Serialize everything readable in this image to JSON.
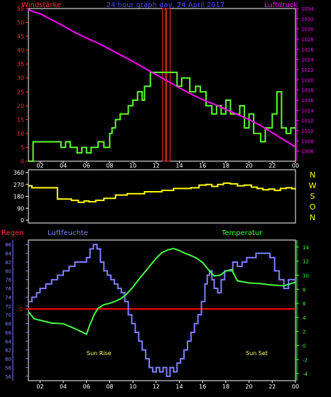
{
  "header": {
    "left_title": "Windstärke",
    "center_title": "24 hour graph day, 24 April 2017",
    "right_title": "Luftdruck"
  },
  "wind_dir_letters": [
    "N",
    "W",
    "S",
    "O",
    "N"
  ],
  "bottom_labels": {
    "rain": "Regen",
    "humidity": "Luftfeuchte",
    "temperature": "Temperatur",
    "sunrise": "Sun Rise",
    "sunset": "Sun Set"
  },
  "colors": {
    "wind": "#5cff2e",
    "gust": "#ff3030",
    "pressure": "#ff00ff",
    "direction": "#ffff00",
    "humidity": "#8080ff",
    "temperature": "#44ff44",
    "rain": "#ff0000",
    "frame": "#ffffff",
    "tick_label": "#ffffff",
    "title_red": "#ff3030",
    "title_blue": "#4a4aff",
    "title_magenta": "#ff00ff",
    "sun_label": "#ffff66"
  },
  "chart_data": [
    {
      "type": "line",
      "x_ticks": [
        "02",
        "04",
        "06",
        "08",
        "10",
        "12",
        "14",
        "16",
        "18",
        "20",
        "22",
        "00"
      ],
      "xlim": [
        1,
        24
      ],
      "y_left_ticks": [
        "55",
        "50",
        "45",
        "40",
        "35",
        "30",
        "25",
        "20",
        "15",
        "10",
        "5",
        "0"
      ],
      "ylim_left": [
        0,
        55
      ],
      "y_right_ticks": [
        "1034",
        "1032",
        "1030",
        "1028",
        "1026",
        "1024",
        "1022",
        "1020",
        "1018",
        "1016",
        "1014",
        "1012",
        "1010",
        "1008",
        "1006"
      ],
      "ylim_right": [
        1004,
        1034
      ],
      "series": [
        {
          "name": "Windstärke",
          "axis": "left",
          "style": "step",
          "x": [
            1.0,
            1.4,
            3.4,
            3.8,
            4.2,
            4.6,
            4.9,
            5.2,
            5.6,
            6.0,
            6.4,
            7.0,
            7.5,
            8.0,
            8.2,
            8.5,
            8.9,
            9.3,
            9.6,
            10.0,
            10.4,
            10.8,
            11.0,
            11.5,
            12.6,
            13.8,
            14.2,
            14.5,
            14.9,
            15.4,
            15.8,
            16.3,
            16.8,
            17.2,
            17.6,
            18.0,
            18.4,
            18.8,
            19.2,
            19.6,
            20.0,
            20.4,
            21.0,
            21.4,
            22.0,
            22.4,
            22.8,
            23.2,
            23.6,
            24.0
          ],
          "y": [
            0,
            7,
            7,
            5,
            7,
            5,
            5,
            3,
            5,
            3,
            5,
            7,
            5,
            10,
            12,
            15,
            17,
            17,
            20,
            22,
            25,
            22,
            27,
            32,
            32,
            27,
            30,
            30,
            25,
            27,
            25,
            20,
            17,
            20,
            17,
            22,
            17,
            17,
            20,
            12,
            17,
            10,
            7,
            12,
            17,
            25,
            12,
            10,
            12,
            12
          ]
        },
        {
          "name": "Böen",
          "axis": "left",
          "style": "bars",
          "bars": [
            {
              "x0": 12.55,
              "x1": 12.8,
              "value": 55
            },
            {
              "x0": 12.9,
              "x1": 13.2,
              "value": 55
            }
          ]
        },
        {
          "name": "Luftdruck",
          "axis": "right",
          "style": "line",
          "x": [
            1.0,
            1.5,
            2.0,
            3.0,
            4.0,
            5.0,
            6.0,
            7.0,
            8.0,
            9.0,
            10.0,
            11.0,
            12.0,
            13.0,
            14.0,
            15.0,
            16.0,
            17.0,
            18.0,
            19.0,
            20.0,
            21.0,
            22.0,
            23.0,
            24.0
          ],
          "y": [
            1033.8,
            1033.3,
            1033.0,
            1031.8,
            1030.6,
            1029.3,
            1028.2,
            1027.2,
            1026.0,
            1024.8,
            1023.6,
            1022.3,
            1021.0,
            1019.7,
            1018.4,
            1017.2,
            1016.1,
            1015.2,
            1014.2,
            1013.2,
            1012.2,
            1011.0,
            1009.6,
            1008.2,
            1006.8
          ]
        }
      ]
    },
    {
      "type": "line",
      "x_ticks": [
        "02",
        "04",
        "06",
        "08",
        "10",
        "12",
        "14",
        "16",
        "18",
        "20",
        "22",
        "00"
      ],
      "xlim": [
        1,
        24
      ],
      "y_ticks": [
        "360",
        "270",
        "180",
        "90",
        "0"
      ],
      "ylim": [
        0,
        360
      ],
      "series": [
        {
          "name": "Windrichtung",
          "style": "step",
          "x": [
            1.0,
            1.3,
            3.3,
            3.5,
            4.7,
            5.3,
            5.8,
            6.2,
            6.8,
            7.5,
            8.5,
            9.5,
            11.0,
            12.5,
            13.5,
            15.0,
            15.7,
            16.3,
            16.8,
            17.3,
            17.8,
            18.4,
            19.0,
            19.6,
            20.2,
            20.7,
            21.2,
            21.7,
            22.2,
            22.7,
            23.2,
            23.7,
            24.0
          ],
          "y": [
            260,
            245,
            245,
            160,
            150,
            135,
            145,
            140,
            150,
            165,
            190,
            200,
            215,
            225,
            240,
            245,
            265,
            270,
            255,
            270,
            280,
            275,
            260,
            265,
            250,
            240,
            230,
            235,
            225,
            240,
            245,
            238,
            240
          ]
        }
      ]
    },
    {
      "type": "line",
      "x_ticks": [
        "02",
        "04",
        "06",
        "08",
        "10",
        "12",
        "14",
        "16",
        "18",
        "20",
        "22",
        "00"
      ],
      "xlim": [
        1,
        24
      ],
      "y_left_ticks": [
        "86",
        "84",
        "82",
        "80",
        "78",
        "76",
        "74",
        "72",
        "70",
        "68",
        "66",
        "64",
        "62",
        "60",
        "58",
        "56"
      ],
      "ylim_left": [
        55,
        87
      ],
      "y_right_ticks": [
        "14",
        "12",
        "10",
        "8",
        "6",
        "4",
        "2",
        "0",
        "-2",
        "-4"
      ],
      "ylim_right": [
        -5,
        15
      ],
      "rain_axis_label": "0",
      "series": [
        {
          "name": "Luftfeuchte",
          "axis": "left",
          "style": "step",
          "x": [
            1.0,
            1.3,
            1.7,
            2.0,
            2.5,
            3.0,
            3.5,
            4.0,
            4.5,
            5.0,
            5.5,
            6.0,
            6.3,
            6.6,
            6.9,
            7.2,
            7.5,
            7.8,
            8.1,
            8.4,
            8.7,
            9.0,
            9.3,
            9.6,
            9.9,
            10.2,
            10.5,
            10.8,
            11.1,
            11.4,
            11.7,
            12.0,
            12.3,
            12.6,
            12.9,
            13.2,
            13.5,
            13.8,
            14.1,
            14.4,
            14.7,
            15.0,
            15.3,
            15.6,
            15.9,
            16.2,
            16.4,
            16.6,
            16.8,
            17.0,
            17.3,
            17.6,
            17.9,
            18.2,
            18.6,
            19.0,
            19.4,
            19.8,
            20.2,
            20.6,
            21.0,
            21.4,
            21.8,
            22.2,
            22.6,
            23.0,
            23.4,
            23.8,
            24.0
          ],
          "y": [
            73,
            74,
            75,
            76,
            77,
            78,
            79,
            80,
            81,
            82,
            82,
            83,
            85,
            86,
            85,
            82,
            80,
            79,
            78,
            77,
            76,
            75,
            73,
            70,
            68,
            66,
            64,
            62,
            60,
            58,
            57,
            58,
            57,
            58,
            56,
            58,
            57,
            59,
            60,
            62,
            64,
            66,
            68,
            70,
            73,
            77,
            79,
            80,
            78,
            76,
            75,
            78,
            80,
            80,
            82,
            81,
            82,
            83,
            83,
            84,
            84,
            84,
            83,
            80,
            78,
            76,
            78,
            78,
            77
          ]
        },
        {
          "name": "Temperatur",
          "axis": "right",
          "style": "line",
          "x": [
            1.0,
            1.5,
            2.0,
            3.0,
            4.0,
            5.0,
            5.5,
            6.0,
            6.3,
            6.7,
            7.0,
            7.5,
            8.0,
            8.5,
            9.0,
            9.5,
            10.0,
            10.5,
            11.0,
            11.5,
            12.0,
            12.5,
            13.0,
            13.5,
            14.0,
            14.5,
            15.0,
            15.5,
            16.0,
            16.5,
            17.0,
            17.5,
            18.0,
            18.5,
            19.0,
            20.0,
            21.0,
            22.0,
            23.0,
            24.0
          ],
          "y": [
            4.8,
            3.8,
            3.6,
            3.2,
            3.1,
            2.4,
            2.0,
            1.6,
            3.0,
            4.5,
            5.3,
            5.8,
            6.0,
            6.3,
            6.7,
            7.4,
            8.3,
            9.4,
            10.4,
            11.4,
            12.4,
            13.2,
            13.6,
            13.8,
            13.5,
            13.1,
            12.8,
            12.4,
            11.8,
            10.8,
            9.9,
            10.0,
            10.6,
            10.8,
            9.2,
            8.9,
            8.8,
            8.6,
            8.5,
            9.0
          ]
        },
        {
          "name": "Regen",
          "axis": "rain",
          "style": "line",
          "x": [
            1.0,
            24.0
          ],
          "y": [
            0,
            0
          ]
        }
      ]
    }
  ]
}
